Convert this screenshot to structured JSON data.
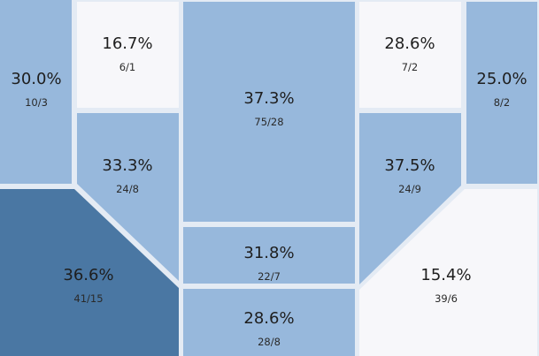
{
  "chart_data": {
    "type": "treemap",
    "title": "",
    "colors": {
      "light": "#f7f7fa",
      "medium": "#97b8dc",
      "dark": "#4a77a3",
      "background": "#e4ebf4"
    },
    "cells": [
      {
        "id": "c1",
        "percent": "30.0%",
        "ratio": "10/3",
        "value": 30.0,
        "shade": "medium"
      },
      {
        "id": "c2",
        "percent": "16.7%",
        "ratio": "6/1",
        "value": 16.7,
        "shade": "light"
      },
      {
        "id": "c3",
        "percent": "33.3%",
        "ratio": "24/8",
        "value": 33.3,
        "shade": "medium"
      },
      {
        "id": "c4",
        "percent": "36.6%",
        "ratio": "41/15",
        "value": 36.6,
        "shade": "dark"
      },
      {
        "id": "c5",
        "percent": "37.3%",
        "ratio": "75/28",
        "value": 37.3,
        "shade": "medium"
      },
      {
        "id": "c6",
        "percent": "31.8%",
        "ratio": "22/7",
        "value": 31.8,
        "shade": "medium"
      },
      {
        "id": "c7",
        "percent": "28.6%",
        "ratio": "28/8",
        "value": 28.6,
        "shade": "medium"
      },
      {
        "id": "c8",
        "percent": "28.6%",
        "ratio": "7/2",
        "value": 28.6,
        "shade": "light"
      },
      {
        "id": "c9",
        "percent": "37.5%",
        "ratio": "24/9",
        "value": 37.5,
        "shade": "medium"
      },
      {
        "id": "c10",
        "percent": "25.0%",
        "ratio": "8/2",
        "value": 25.0,
        "shade": "medium"
      },
      {
        "id": "c11",
        "percent": "15.4%",
        "ratio": "39/6",
        "value": 15.4,
        "shade": "light"
      }
    ]
  }
}
